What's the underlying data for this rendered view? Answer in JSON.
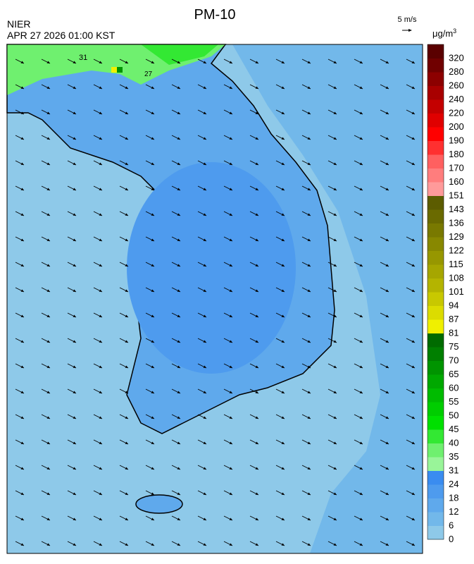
{
  "header": {
    "title": "PM-10",
    "source": "NIER",
    "datetime": "APR 27 2026 01:00 KST",
    "wind_scale": "5 m/s"
  },
  "map_labels": [
    "31",
    "27"
  ],
  "legend": {
    "unit": {
      "base": "μg/m",
      "sup": "3"
    },
    "labels": [
      0,
      6,
      12,
      18,
      24,
      31,
      35,
      40,
      45,
      50,
      55,
      60,
      65,
      70,
      75,
      81,
      87,
      94,
      101,
      108,
      115,
      122,
      129,
      136,
      143,
      151,
      160,
      170,
      180,
      190,
      200,
      220,
      240,
      260,
      280,
      320
    ],
    "colors": [
      "#8ec9e9",
      "#72b8ea",
      "#5fa9ec",
      "#4e9bee",
      "#3a8cf0",
      "#99f599",
      "#6ff06f",
      "#33e833",
      "#00e000",
      "#00cd00",
      "#00bb00",
      "#00a800",
      "#009400",
      "#007f00",
      "#006b00",
      "#f0f000",
      "#dcdc00",
      "#c8c800",
      "#b4b400",
      "#a6a600",
      "#979700",
      "#888800",
      "#797900",
      "#6a6a00",
      "#5c5c00",
      "#ff9a9a",
      "#ff7d7d",
      "#ff6060",
      "#ff3030",
      "#ff0000",
      "#e00000",
      "#c40000",
      "#a80000",
      "#8c0000",
      "#700000",
      "#5a0000"
    ]
  }
}
